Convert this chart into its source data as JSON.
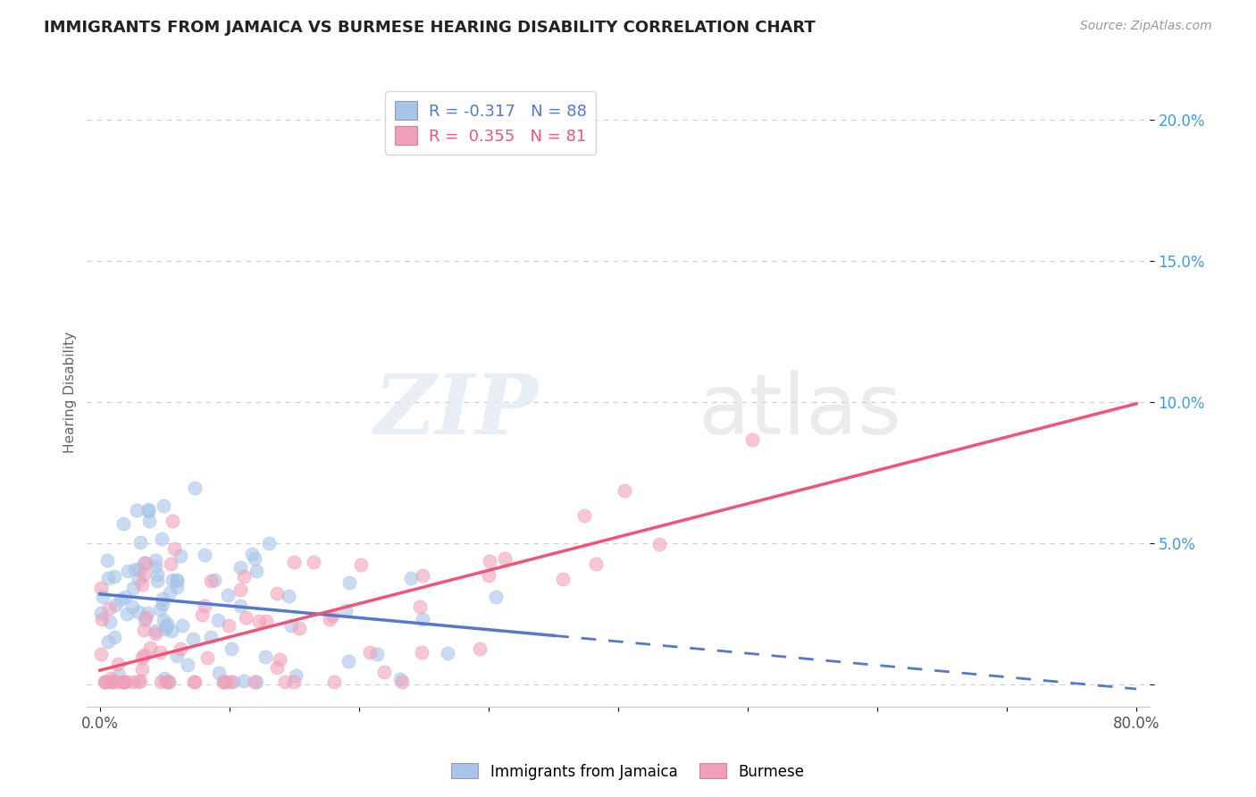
{
  "title": "IMMIGRANTS FROM JAMAICA VS BURMESE HEARING DISABILITY CORRELATION CHART",
  "source_text": "Source: ZipAtlas.com",
  "watermark_zip": "ZIP",
  "watermark_atlas": "atlas",
  "xlabel": "",
  "ylabel": "Hearing Disability",
  "legend_label_1": "Immigrants from Jamaica",
  "legend_label_2": "Burmese",
  "r1": -0.317,
  "n1": 88,
  "r2": 0.355,
  "n2": 81,
  "color1": "#a8c4e8",
  "color2": "#f0a0b8",
  "trend1_color": "#5577cc",
  "trend2_color": "#ee5577",
  "xmin": 0.0,
  "xmax": 0.8,
  "ymin": -0.008,
  "ymax": 0.215,
  "yticks": [
    0.0,
    0.05,
    0.1,
    0.15,
    0.2
  ],
  "ytick_labels": [
    "",
    "5.0%",
    "10.0%",
    "15.0%",
    "20.0%"
  ],
  "xticks": [
    0.0,
    0.1,
    0.2,
    0.3,
    0.4,
    0.5,
    0.6,
    0.7,
    0.8
  ],
  "xtick_labels": [
    "0.0%",
    "",
    "",
    "",
    "",
    "",
    "",
    "",
    "80.0%"
  ],
  "background_color": "#ffffff",
  "grid_color": "#cccccc",
  "trend1_intercept": 0.032,
  "trend1_slope": -0.042,
  "trend2_intercept": 0.005,
  "trend2_slope": 0.118
}
